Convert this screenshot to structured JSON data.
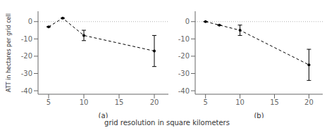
{
  "chart_data": [
    {
      "type": "line",
      "title": "(a)",
      "ylabel": "ATT in hectares per grid cell",
      "xlabel": "grid resolution in square kilometers",
      "x": [
        5,
        7,
        10,
        20
      ],
      "series": [
        {
          "values": [
            -3,
            2,
            -8,
            -17
          ],
          "error_lo": [
            0,
            0,
            3,
            9
          ],
          "error_hi": [
            0,
            0,
            3,
            9
          ],
          "color": "#000000",
          "line_style": "dashed",
          "marker": "circle"
        }
      ],
      "xlim": [
        3.5,
        22
      ],
      "xticks": [
        5,
        10,
        15,
        20
      ],
      "ylim": [
        -42,
        6
      ],
      "yticks": [
        0,
        -10,
        -20,
        -30,
        -40
      ],
      "hline": {
        "value": 0,
        "color": "#b0b0b0",
        "line_style": "dotted"
      }
    },
    {
      "type": "line",
      "title": "(b)",
      "x": [
        5,
        7,
        10,
        20
      ],
      "series": [
        {
          "values": [
            0,
            -2,
            -5,
            -25
          ],
          "error_lo": [
            0,
            0,
            3,
            9
          ],
          "error_hi": [
            0,
            0,
            3,
            9
          ],
          "color": "#000000",
          "line_style": "dashed",
          "marker": "circle"
        }
      ],
      "xlim": [
        3.5,
        22
      ],
      "xticks": [
        5,
        10,
        15,
        20
      ],
      "ylim": [
        -42,
        6
      ],
      "yticks": [
        0,
        -10,
        -20,
        -30,
        -40
      ],
      "hline": {
        "value": 0,
        "color": "#b0b0b0",
        "line_style": "dotted"
      }
    }
  ]
}
